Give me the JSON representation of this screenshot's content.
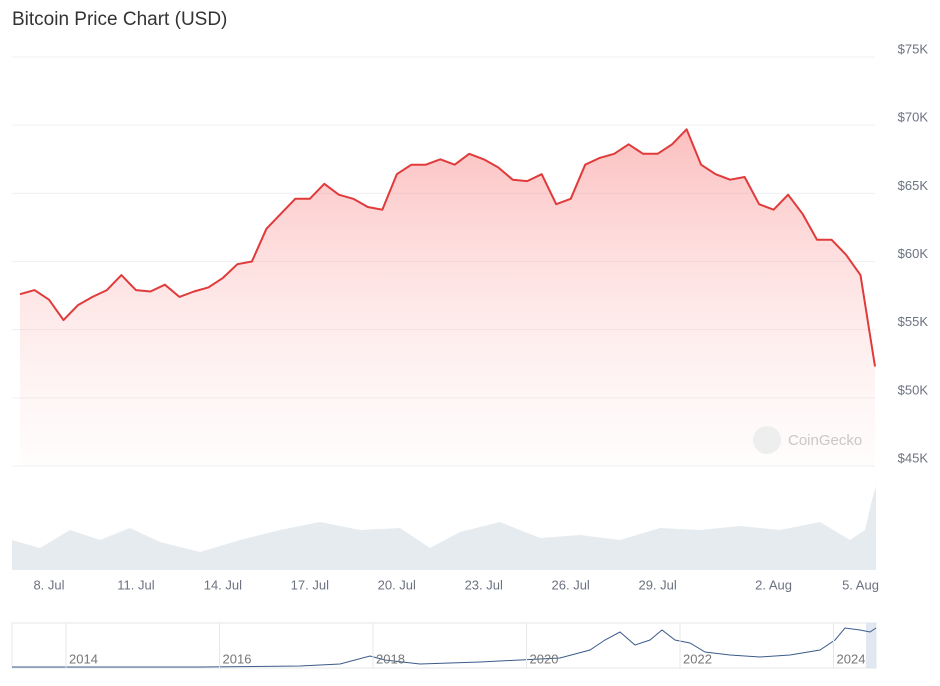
{
  "chart_data": {
    "type": "line",
    "title": "Bitcoin Price Chart (USD)",
    "watermark": "CoinGecko",
    "color": "#e03a3a",
    "grid": true,
    "categories": [
      null,
      null,
      "8. Jul",
      null,
      null,
      null,
      null,
      null,
      "11. Jul",
      null,
      null,
      null,
      null,
      null,
      "14. Jul",
      null,
      null,
      null,
      null,
      null,
      "17. Jul",
      null,
      null,
      null,
      null,
      null,
      "20. Jul",
      null,
      null,
      null,
      null,
      null,
      "23. Jul",
      null,
      null,
      null,
      null,
      null,
      "26. Jul",
      null,
      null,
      null,
      null,
      null,
      "29. Jul",
      null,
      null,
      null,
      null,
      null,
      null,
      null,
      "2. Aug",
      null,
      null,
      null,
      null,
      null,
      "5. Aug",
      null
    ],
    "values": [
      57600,
      57900,
      57200,
      55700,
      56800,
      57400,
      57900,
      59000,
      57900,
      57800,
      58300,
      57400,
      57800,
      58100,
      58800,
      59800,
      60000,
      62400,
      63500,
      64600,
      64600,
      65700,
      64900,
      64600,
      64000,
      63800,
      66400,
      67100,
      67100,
      67500,
      67100,
      67900,
      67500,
      66900,
      66000,
      65900,
      66400,
      64200,
      64600,
      67100,
      67600,
      67900,
      68600,
      67900,
      67900,
      68600,
      69700,
      67100,
      66400,
      66000,
      66200,
      64200,
      63800,
      64900,
      63500,
      61600,
      61600,
      60500,
      59000,
      52300
    ],
    "ylim": [
      45000,
      75000
    ],
    "yticks": [
      {
        "value": 45000,
        "label": "$45K"
      },
      {
        "value": 50000,
        "label": "$50K"
      },
      {
        "value": 55000,
        "label": "$55K"
      },
      {
        "value": 60000,
        "label": "$60K"
      },
      {
        "value": 65000,
        "label": "$65K"
      },
      {
        "value": 70000,
        "label": "$70K"
      },
      {
        "value": 75000,
        "label": "$75K"
      }
    ],
    "navigator_labels": [
      "2014",
      "2016",
      "2018",
      "2020",
      "2022",
      "2024"
    ]
  }
}
